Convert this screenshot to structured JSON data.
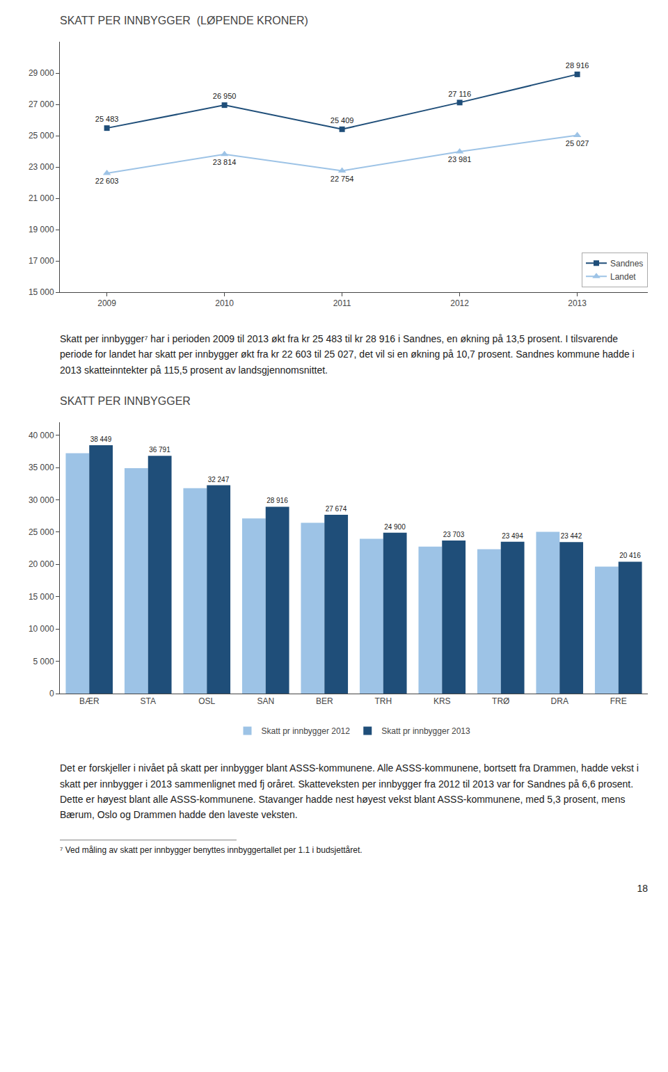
{
  "chart_data": [
    {
      "type": "line",
      "title": "SKATT PER INNBYGGER  (LØPENDE KRONER)",
      "x": [
        2009,
        2010,
        2011,
        2012,
        2013
      ],
      "series": [
        {
          "name": "Sandnes",
          "color": "#1F4E79",
          "marker": "square",
          "values": [
            25483,
            26950,
            25409,
            27116,
            28916
          ],
          "data_labels": true,
          "value_labels": [
            "25 483",
            "26 950",
            "25 409",
            "27 116",
            "28 916"
          ]
        },
        {
          "name": "Landet",
          "color": "#9DC3E6",
          "marker": "triangle-up",
          "values": [
            22603,
            23814,
            22754,
            23981,
            25027
          ],
          "data_labels": true,
          "value_labels": [
            "22 603",
            "23 814",
            "22 754",
            "23 981",
            "25 027"
          ]
        }
      ],
      "xlim": [
        2008.6,
        2013.6
      ],
      "xticks": [
        2009,
        2010,
        2011,
        2012,
        2013
      ],
      "ylim": [
        15000,
        31000
      ],
      "yticks": [
        {
          "value": 15000,
          "label": "15 000"
        },
        {
          "value": 17000,
          "label": "17 000"
        },
        {
          "value": 19000,
          "label": "19 000"
        },
        {
          "value": 21000,
          "label": "21 000"
        },
        {
          "value": 23000,
          "label": "23 000"
        },
        {
          "value": 25000,
          "label": "25 000"
        },
        {
          "value": 27000,
          "label": "27 000"
        },
        {
          "value": 29000,
          "label": "29 000"
        }
      ],
      "grid": false,
      "legend": "lower right"
    },
    {
      "type": "bar",
      "title": "SKATT PER INNBYGGER",
      "categories": [
        "BÆR",
        "STA",
        "OSL",
        "SAN",
        "BER",
        "TRH",
        "KRS",
        "TRØ",
        "DRA",
        "FRE"
      ],
      "series": [
        {
          "name": "Skatt pr innbygger 2012",
          "color": "#9DC3E6",
          "values": [
            37200,
            34900,
            31800,
            27100,
            26450,
            23950,
            22750,
            22350,
            25050,
            19650
          ]
        },
        {
          "name": "Skatt pr innbygger 2013",
          "color": "#1F4E79",
          "values": [
            38449,
            36791,
            32247,
            28916,
            27674,
            24900,
            23703,
            23494,
            23442,
            20416
          ],
          "data_labels": true,
          "value_labels": [
            "38 449",
            "36 791",
            "32 247",
            "28 916",
            "27 674",
            "24 900",
            "23 703",
            "23 494",
            "23 442",
            "20 416"
          ]
        }
      ],
      "ylim": [
        0,
        42000
      ],
      "yticks": [
        0,
        {
          "value": 5000,
          "label": "5 000"
        },
        {
          "value": 10000,
          "label": "10 000"
        },
        {
          "value": 15000,
          "label": "15 000"
        },
        {
          "value": 20000,
          "label": "20 000"
        },
        {
          "value": 25000,
          "label": "25 000"
        },
        {
          "value": 30000,
          "label": "30 000"
        },
        {
          "value": 35000,
          "label": "35 000"
        },
        {
          "value": 40000,
          "label": "40 000"
        }
      ],
      "grid": false,
      "legend": "bottom"
    }
  ],
  "paragraphs": [
    "Skatt per innbygger⁷ har i perioden 2009 til 2013 økt fra kr 25 483 til kr 28 916 i Sandnes, en økning på 13,5 prosent. I tilsvarende periode for landet har skatt per innbygger økt fra kr 22 603 til 25 027, det vil si en økning på 10,7 prosent. Sandnes kommune hadde i 2013 skatteinntekter på 115,5 prosent av landsgjennomsnittet.",
    "Det er forskjeller i nivået på skatt per innbygger blant ASSS-kommunene. Alle ASSS-kommunene, bortsett fra Drammen, hadde vekst i skatt per innbygger i 2013 sammenlignet med fj oråret. Skatteveksten per innbygger fra 2012 til 2013 var for Sandnes på 6,6 prosent. Dette er høyest blant alle ASSS-kommunene. Stavanger hadde nest høyest vekst blant ASSS-kommunene, med 5,3 prosent, mens Bærum, Oslo og Drammen hadde den laveste veksten."
  ],
  "footnote": "⁷ Ved måling av skatt per innbygger benyttes innbyggertallet per 1.1 i budsjettåret.",
  "page_number": "18"
}
